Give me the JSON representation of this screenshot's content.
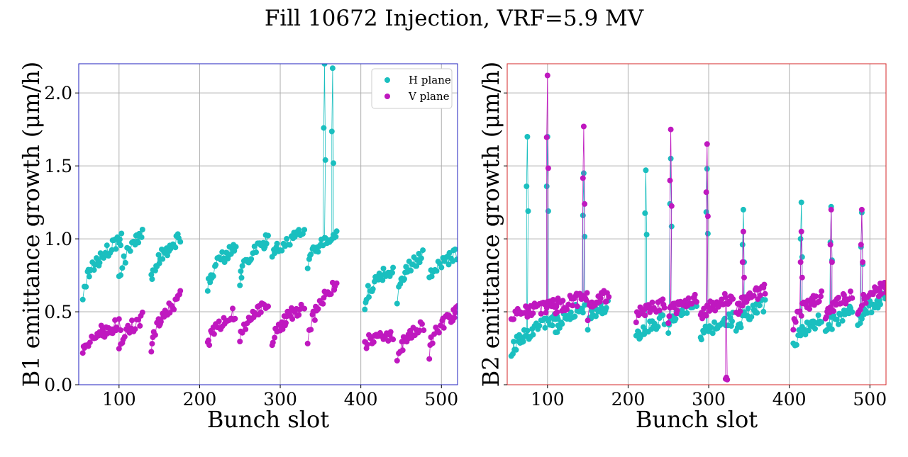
{
  "figure": {
    "title": "Fill 10672 Injection, VRF=5.9 MV",
    "colors": {
      "h_plane": "#1abfbf",
      "v_plane": "#bf18bf",
      "left_frame": "#1f1fbf",
      "right_frame": "#d62728"
    }
  },
  "chart_data": [
    {
      "type": "scatter",
      "title": "",
      "xlabel": "Bunch slot",
      "ylabel": "B1 emittance growth (μm/h)",
      "xlim": [
        50,
        520
      ],
      "ylim": [
        0,
        2.2
      ],
      "xticks": [
        100,
        200,
        300,
        400,
        500
      ],
      "yticks": [
        0.0,
        0.5,
        1.0,
        1.5,
        2.0
      ],
      "ytick_labels": [
        "0.0",
        "0.5",
        "1.0",
        "1.5",
        "2.0"
      ],
      "grid": true,
      "legend_position": "top-right",
      "series": [
        {
          "name": "H plane",
          "color": "#1abfbf",
          "trains": [
            [
              55,
              0.6,
              103,
              1.0
            ],
            [
              100,
              0.7,
              130,
              1.05
            ],
            [
              140,
              0.72,
              176,
              1.0
            ],
            [
              210,
              0.65,
              245,
              0.95
            ],
            [
              250,
              0.7,
              285,
              1.0
            ],
            [
              290,
              0.85,
              330,
              1.05
            ],
            [
              334,
              0.8,
              370,
              1.05
            ],
            [
              405,
              0.55,
              440,
              0.8
            ],
            [
              445,
              0.6,
              478,
              0.9
            ],
            [
              485,
              0.7,
              520,
              0.9
            ]
          ],
          "spikes": [
            [
              355,
              2.2
            ],
            [
              365,
              2.17
            ]
          ]
        },
        {
          "name": "V plane",
          "color": "#bf18bf",
          "trains": [
            [
              55,
              0.23,
              103,
              0.42
            ],
            [
              100,
              0.23,
              130,
              0.46
            ],
            [
              140,
              0.25,
              176,
              0.6
            ],
            [
              210,
              0.25,
              245,
              0.5
            ],
            [
              250,
              0.28,
              285,
              0.58
            ],
            [
              290,
              0.25,
              330,
              0.55
            ],
            [
              334,
              0.27,
              370,
              0.7
            ],
            [
              405,
              0.28,
              440,
              0.34
            ],
            [
              445,
              0.17,
              478,
              0.4
            ],
            [
              485,
              0.22,
              520,
              0.5
            ]
          ],
          "spikes": []
        }
      ]
    },
    {
      "type": "scatter",
      "title": "",
      "xlabel": "Bunch slot",
      "ylabel": "B2 emittance growth (μm/h)",
      "xlim": [
        50,
        520
      ],
      "ylim": [
        0,
        2.2
      ],
      "xticks": [
        100,
        200,
        300,
        400,
        500
      ],
      "yticks": [
        0.0,
        0.5,
        1.0,
        1.5,
        2.0
      ],
      "ytick_labels": [
        "",
        "",
        "",
        "",
        ""
      ],
      "grid": true,
      "legend_position": "",
      "series": [
        {
          "name": "H plane",
          "color": "#1abfbf",
          "trains": [
            [
              55,
              0.2,
              113,
              0.45
            ],
            [
              110,
              0.35,
              150,
              0.55
            ],
            [
              150,
              0.42,
              176,
              0.55
            ],
            [
              210,
              0.3,
              246,
              0.45
            ],
            [
              250,
              0.38,
              285,
              0.55
            ],
            [
              290,
              0.3,
              330,
              0.45
            ],
            [
              334,
              0.35,
              370,
              0.55
            ],
            [
              405,
              0.25,
              440,
              0.45
            ],
            [
              445,
              0.35,
              478,
              0.5
            ],
            [
              485,
              0.4,
              520,
              0.6
            ]
          ],
          "spikes": [
            [
              75,
              1.7
            ],
            [
              100,
              1.7
            ],
            [
              145,
              1.45
            ],
            [
              222,
              1.47
            ],
            [
              253,
              1.55
            ],
            [
              298,
              1.48
            ],
            [
              343,
              1.2
            ],
            [
              415,
              1.25
            ],
            [
              452,
              1.22
            ],
            [
              490,
              1.18
            ]
          ]
        },
        {
          "name": "V plane",
          "color": "#bf18bf",
          "trains": [
            [
              55,
              0.45,
              113,
              0.55
            ],
            [
              110,
              0.5,
              150,
              0.6
            ],
            [
              150,
              0.48,
              176,
              0.62
            ],
            [
              210,
              0.45,
              246,
              0.55
            ],
            [
              250,
              0.45,
              285,
              0.6
            ],
            [
              290,
              0.45,
              330,
              0.6
            ],
            [
              334,
              0.48,
              370,
              0.65
            ],
            [
              405,
              0.42,
              440,
              0.6
            ],
            [
              445,
              0.48,
              478,
              0.6
            ],
            [
              485,
              0.5,
              520,
              0.67
            ]
          ],
          "spikes": [
            [
              100,
              2.12
            ],
            [
              145,
              1.77
            ],
            [
              253,
              1.75
            ],
            [
              298,
              1.65
            ],
            [
              343,
              1.05
            ],
            [
              415,
              1.05
            ],
            [
              452,
              1.2
            ],
            [
              490,
              1.2
            ],
            [
              322,
              0.05
            ]
          ]
        }
      ]
    }
  ]
}
